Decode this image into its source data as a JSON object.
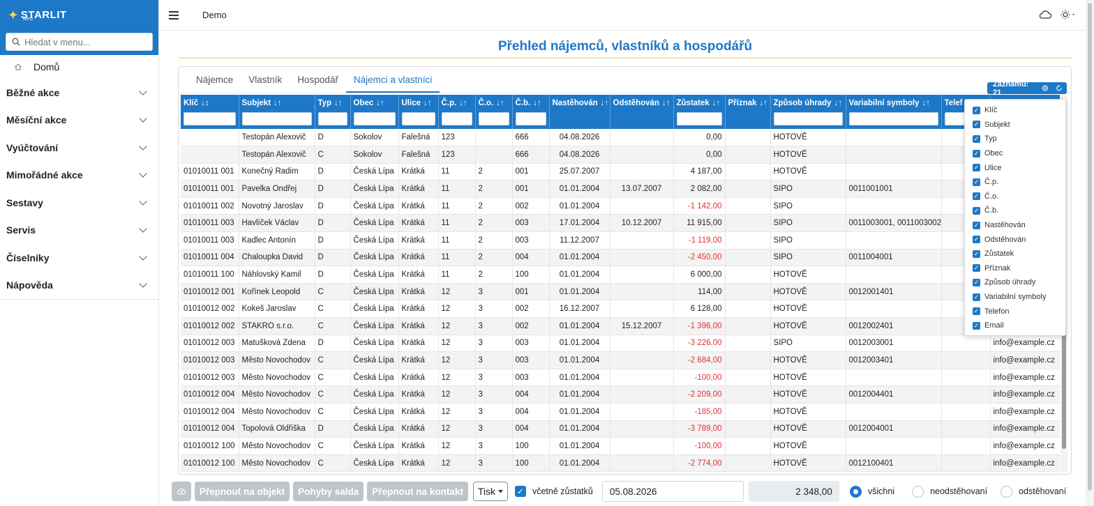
{
  "app": {
    "logo": "STARLIT",
    "logo_sub": "web",
    "name": "Demo"
  },
  "sidebar": {
    "search_placeholder": "Hledat v menu...",
    "home": "Domů",
    "items": [
      "Běžné akce",
      "Měsíční akce",
      "Vyúčtování",
      "Mimořádné akce",
      "Sestavy",
      "Servis",
      "Číselníky",
      "Nápověda"
    ]
  },
  "page": {
    "title": "Přehled nájemců, vlastníků a hospodářů"
  },
  "tabs": [
    "Nájemce",
    "Vlastník",
    "Hospodář",
    "Nájemci a vlastníci"
  ],
  "active_tab": "Nájemci a vlastníci",
  "records": {
    "label": "Záznamů: 21"
  },
  "table": {
    "columns": [
      {
        "label": "Klíč",
        "sort": "↓↕"
      },
      {
        "label": "Subjekt",
        "sort": "↓↑"
      },
      {
        "label": "Typ",
        "sort": "↓↑"
      },
      {
        "label": "Obec",
        "sort": "↓↑"
      },
      {
        "label": "Ulice",
        "sort": "↓↑"
      },
      {
        "label": "Č.p.",
        "sort": "↓↑"
      },
      {
        "label": "Č.o.",
        "sort": "↓↑"
      },
      {
        "label": "Č.b.",
        "sort": "↓↑"
      },
      {
        "label": "Nastěhován",
        "sort": "↓↑"
      },
      {
        "label": "Odstěhován",
        "sort": "↓↑"
      },
      {
        "label": "Zůstatek",
        "sort": "↓↑"
      },
      {
        "label": "Příznak",
        "sort": "↓↑"
      },
      {
        "label": "Způsob úhrady",
        "sort": "↓↑"
      },
      {
        "label": "Variabilní symboly",
        "sort": "↓↑"
      },
      {
        "label": "Telef",
        "sort": ""
      },
      {
        "label": "",
        "sort": ""
      }
    ],
    "rows": [
      [
        "",
        "Testopán Alexovič",
        "D",
        "Sokolov",
        "Falešná",
        "123",
        "",
        "666",
        "04.08.2026",
        "",
        "0,00",
        "",
        "HOTOVĚ",
        "",
        "",
        ""
      ],
      [
        "",
        "Testopán Alexovič",
        "C",
        "Sokolov",
        "Falešná",
        "123",
        "",
        "666",
        "04.08.2026",
        "",
        "0,00",
        "",
        "HOTOVĚ",
        "",
        "",
        ""
      ],
      [
        "01010011 001",
        "Konečný Radim",
        "D",
        "Česká Lípa",
        "Krátká",
        "11",
        "2",
        "001",
        "25.07.2007",
        "",
        "4 187,00",
        "",
        "HOTOVĚ",
        "",
        "",
        ""
      ],
      [
        "01010011 001",
        "Pavelka Ondřej",
        "D",
        "Česká Lípa",
        "Krátká",
        "11",
        "2",
        "001",
        "01.01.2004",
        "13.07.2007",
        "2 082,00",
        "",
        "SIPO",
        "0011001001",
        "",
        ""
      ],
      [
        "01010011 002",
        "Novotný Jaroslav",
        "D",
        "Česká Lípa",
        "Krátká",
        "11",
        "2",
        "002",
        "01.01.2004",
        "",
        "-1 142,00",
        "",
        "SIPO",
        "",
        "",
        ""
      ],
      [
        "01010011 003",
        "Havlíček Václav",
        "D",
        "Česká Lípa",
        "Krátká",
        "11",
        "2",
        "003",
        "17.01.2004",
        "10.12.2007",
        "11 915,00",
        "",
        "SIPO",
        "0011003001, 0011003002",
        "",
        ""
      ],
      [
        "01010011 003",
        "Kadlec Antonín",
        "D",
        "Česká Lípa",
        "Krátká",
        "11",
        "2",
        "003",
        "11.12.2007",
        "",
        "-1 119,00",
        "",
        "SIPO",
        "",
        "",
        ""
      ],
      [
        "01010011 004",
        "Chaloupka David",
        "D",
        "Česká Lípa",
        "Krátká",
        "11",
        "2",
        "004",
        "01.01.2004",
        "",
        "-2 450,00",
        "",
        "SIPO",
        "0011004001",
        "",
        ""
      ],
      [
        "01010011 100",
        "Náhlovský Kamil",
        "D",
        "Česká Lípa",
        "Krátká",
        "11",
        "2",
        "100",
        "01.01.2004",
        "",
        "6 000,00",
        "",
        "HOTOVĚ",
        "",
        "",
        ""
      ],
      [
        "01010012 001",
        "Kořínek Leopold",
        "C",
        "Česká Lípa",
        "Krátká",
        "12",
        "3",
        "001",
        "01.01.2004",
        "",
        "114,00",
        "",
        "HOTOVĚ",
        "0012001401",
        "",
        ""
      ],
      [
        "01010012 002",
        "Kokeš Jaroslav",
        "C",
        "Česká Lípa",
        "Krátká",
        "12",
        "3",
        "002",
        "16.12.2007",
        "",
        "6 128,00",
        "",
        "HOTOVĚ",
        "",
        "",
        ""
      ],
      [
        "01010012 002",
        "STAKRO s.r.o.",
        "C",
        "Česká Lípa",
        "Krátká",
        "12",
        "3",
        "002",
        "01.01.2004",
        "15.12.2007",
        "-1 396,00",
        "",
        "HOTOVĚ",
        "0012002401",
        "",
        ""
      ],
      [
        "01010012 003",
        "Matušková Zdena",
        "D",
        "Česká Lípa",
        "Krátká",
        "12",
        "3",
        "003",
        "01.01.2004",
        "",
        "-3 226,00",
        "",
        "SIPO",
        "0012003001",
        "",
        "info@example.cz"
      ],
      [
        "01010012 003",
        "Město Novochodov",
        "C",
        "Česká Lípa",
        "Krátká",
        "12",
        "3",
        "003",
        "01.01.2004",
        "",
        "-2 684,00",
        "",
        "HOTOVĚ",
        "0012003401",
        "",
        "info@example.cz"
      ],
      [
        "01010012 003",
        "Město Novochodov",
        "C",
        "Česká Lípa",
        "Krátká",
        "12",
        "3",
        "003",
        "01.01.2004",
        "",
        "-100,00",
        "",
        "HOTOVĚ",
        "",
        "",
        "info@example.cz"
      ],
      [
        "01010012 004",
        "Město Novochodov",
        "C",
        "Česká Lípa",
        "Krátká",
        "12",
        "3",
        "004",
        "01.01.2004",
        "",
        "-2 209,00",
        "",
        "HOTOVĚ",
        "0012004401",
        "",
        "info@example.cz"
      ],
      [
        "01010012 004",
        "Město Novochodov",
        "C",
        "Česká Lípa",
        "Krátká",
        "12",
        "3",
        "004",
        "01.01.2004",
        "",
        "-185,00",
        "",
        "HOTOVĚ",
        "",
        "",
        "info@example.cz"
      ],
      [
        "01010012 004",
        "Topolová Oldřiška",
        "D",
        "Česká Lípa",
        "Krátká",
        "12",
        "3",
        "004",
        "01.01.2004",
        "",
        "-3 789,00",
        "",
        "HOTOVĚ",
        "0012004001",
        "",
        "info@example.cz"
      ],
      [
        "01010012 100",
        "Město Novochodov",
        "C",
        "Česká Lípa",
        "Krátká",
        "12",
        "3",
        "100",
        "01.01.2004",
        "",
        "-100,00",
        "",
        "HOTOVĚ",
        "",
        "",
        "info@example.cz"
      ],
      [
        "01010012 100",
        "Město Novochodov",
        "C",
        "Česká Lípa",
        "Krátká",
        "12",
        "3",
        "100",
        "01.01.2004",
        "",
        "-2 774,00",
        "",
        "HOTOVĚ",
        "0012100401",
        "",
        "info@example.cz"
      ]
    ]
  },
  "column_menu": [
    "Klíč",
    "Subjekt",
    "Typ",
    "Obec",
    "Ulice",
    "Č.p.",
    "Č.o.",
    "Č.b.",
    "Nastěhován",
    "Odstěhován",
    "Zůstatek",
    "Příznak",
    "Způsob úhrady",
    "Variabilní symboly",
    "Telefon",
    "Email"
  ],
  "bottom": {
    "btn_objekt": "Přepnout na objekt",
    "btn_pohyby": "Pohyby salda",
    "btn_kontakt": "Přepnout na kontakt",
    "btn_tisk": "Tisk",
    "check_label": "včetně zůstatků",
    "date": "05.08.2026",
    "sum": "2 348,00",
    "radio_all": "všichni",
    "radio_not_moved": "neodstěhovaní",
    "radio_moved": "odstěhovaní"
  },
  "colors": {
    "accent": "#1e78c8",
    "negative": "#e03131"
  }
}
